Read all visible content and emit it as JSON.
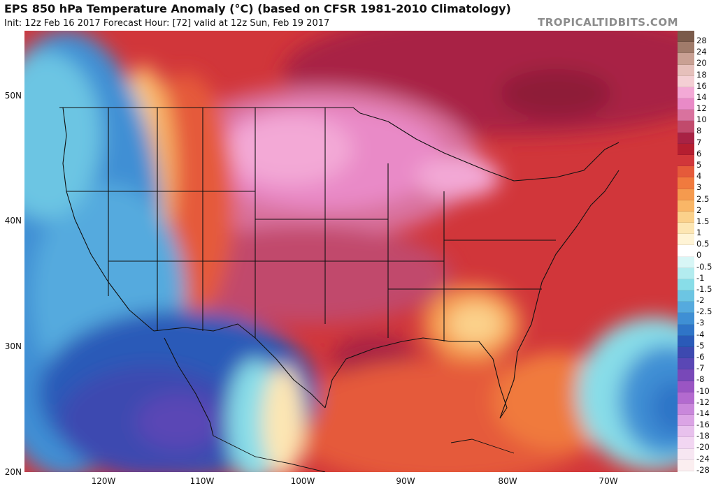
{
  "header": {
    "title": "EPS 850 hPa Temperature Anomaly (°C) (based on CFSR 1981-2010 Climatology)",
    "subtitle": "Init: 12z Feb 16 2017   Forecast Hour: [72]   valid at 12z Sun, Feb 19 2017",
    "brand": "TROPICALTIDBITS.COM"
  },
  "axes": {
    "lat_labels": [
      "50N",
      "40N",
      "30N",
      "20N"
    ],
    "lon_labels": [
      "120W",
      "110W",
      "100W",
      "90W",
      "80W",
      "70W"
    ]
  },
  "colorbar": {
    "labels": [
      "28",
      "24",
      "20",
      "18",
      "16",
      "14",
      "12",
      "10",
      "8",
      "7",
      "6",
      "5",
      "4",
      "3",
      "2.5",
      "2",
      "1.5",
      "1",
      "0.5",
      "0",
      "-0.5",
      "-1",
      "-1.5",
      "-2",
      "-2.5",
      "-3",
      "-4",
      "-5",
      "-6",
      "-7",
      "-8",
      "-10",
      "-12",
      "-14",
      "-16",
      "-18",
      "-20",
      "-24",
      "-28"
    ],
    "colors": [
      "#7a5a4a",
      "#a07b6a",
      "#c9a093",
      "#e6c0bb",
      "#f4cfd4",
      "#f3a9d6",
      "#e98ac7",
      "#d9729e",
      "#c14a6c",
      "#a82244",
      "#b51e30",
      "#d1363a",
      "#e55a3a",
      "#f07a3e",
      "#f59a4e",
      "#f9b667",
      "#fbd18b",
      "#fde6b3",
      "#fff4d6",
      "#ffffff",
      "#d8f6f6",
      "#b3ecef",
      "#88dde8",
      "#6cc5e3",
      "#55aade",
      "#3f8fd4",
      "#2f74c7",
      "#2a5ab8",
      "#3d49b0",
      "#5a47b5",
      "#7848b8",
      "#9a55c3",
      "#b36acf",
      "#c987db",
      "#dba4e5",
      "#e8c1ed",
      "#f2d6f2",
      "#f7e6f2",
      "#fbeef0"
    ]
  },
  "map": {
    "features": [
      "US state boundaries",
      "country borders",
      "coastlines"
    ]
  }
}
